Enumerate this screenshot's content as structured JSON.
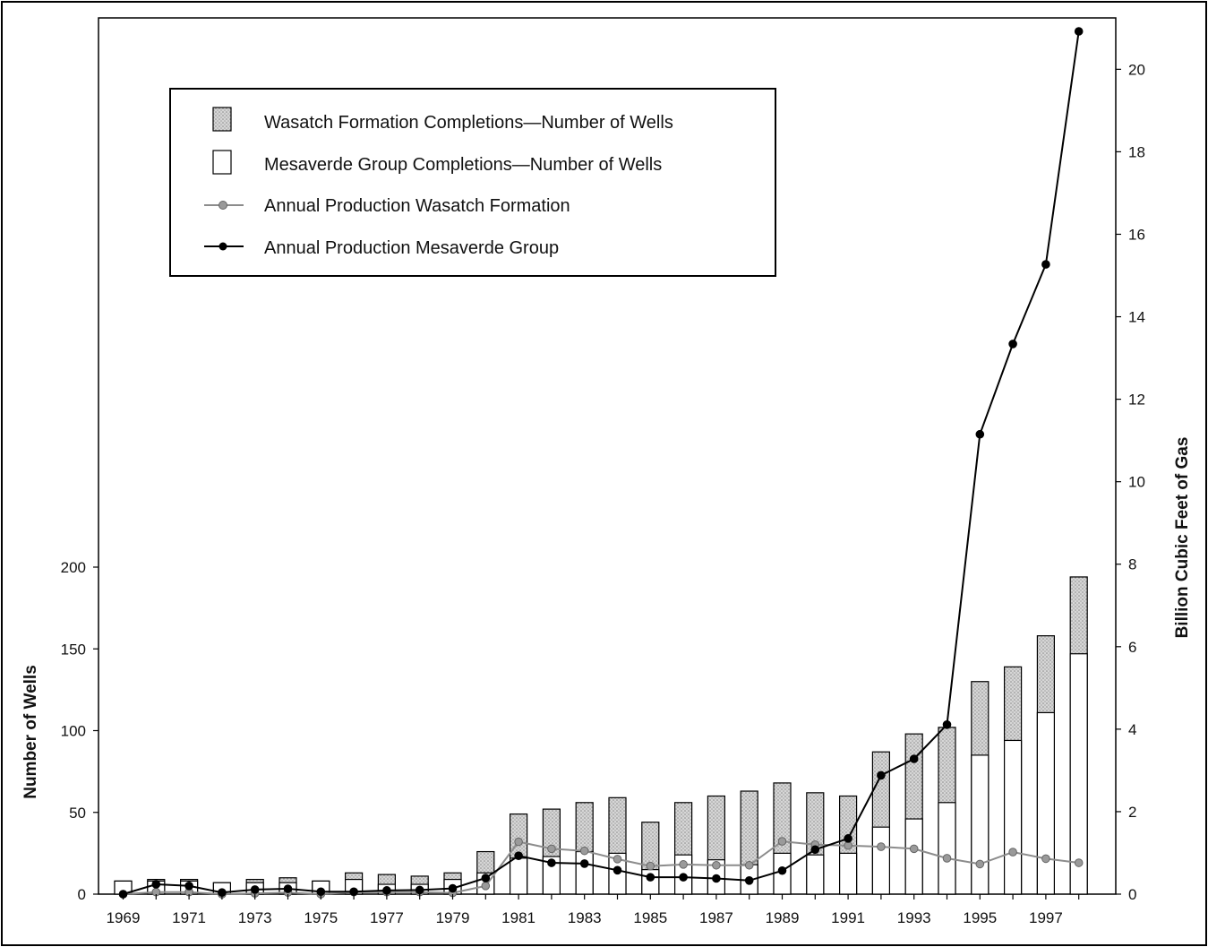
{
  "chart_data": {
    "type": "bar",
    "x": [
      1969,
      1970,
      1971,
      1972,
      1973,
      1974,
      1975,
      1976,
      1977,
      1978,
      1979,
      1980,
      1981,
      1982,
      1983,
      1984,
      1985,
      1986,
      1987,
      1988,
      1989,
      1990,
      1991,
      1992,
      1993,
      1994,
      1995,
      1996,
      1997,
      1998
    ],
    "x_tick_labels": [
      "1969",
      "1971",
      "1973",
      "1975",
      "1977",
      "1979",
      "1981",
      "1983",
      "1985",
      "1987",
      "1989",
      "1991",
      "1993",
      "1995",
      "1997"
    ],
    "stacked_bars": [
      {
        "name": "Mesaverde Group Completions—Number of Wells",
        "values": [
          8,
          8,
          8,
          7,
          7,
          7,
          8,
          9,
          6,
          6,
          9,
          13,
          22,
          23,
          26,
          25,
          15,
          24,
          21,
          18,
          25,
          24,
          25,
          41,
          46,
          56,
          85,
          94,
          111,
          147
        ]
      },
      {
        "name": "Wasatch Formation Completions—Number of Wells",
        "values": [
          0,
          1,
          1,
          0,
          2,
          3,
          0,
          4,
          6,
          5,
          4,
          13,
          27,
          29,
          30,
          34,
          29,
          32,
          39,
          45,
          43,
          38,
          35,
          46,
          52,
          46,
          45,
          45,
          47,
          47
        ]
      }
    ],
    "lines": [
      {
        "name": "Annual Production Wasatch Formation",
        "values": [
          0.0,
          0.05,
          0.05,
          0.0,
          0.02,
          0.04,
          0.0,
          0.05,
          0.05,
          0.05,
          0.03,
          0.2,
          1.27,
          1.1,
          1.05,
          0.85,
          0.68,
          0.72,
          0.7,
          0.7,
          1.28,
          1.2,
          1.18,
          1.15,
          1.1,
          0.87,
          0.73,
          1.02,
          0.86,
          0.76
        ]
      },
      {
        "name": "Annual Production Mesaverde Group",
        "values": [
          0.0,
          0.24,
          0.2,
          0.04,
          0.11,
          0.13,
          0.06,
          0.06,
          0.09,
          0.1,
          0.14,
          0.39,
          0.93,
          0.76,
          0.74,
          0.58,
          0.41,
          0.41,
          0.38,
          0.33,
          0.57,
          1.08,
          1.35,
          2.88,
          3.28,
          4.11,
          11.15,
          13.34,
          15.27,
          20.92
        ]
      }
    ],
    "y_left": {
      "label": "Number of Wells",
      "ticks": [
        "0",
        "50",
        "100",
        "150",
        "200"
      ],
      "ylim": [
        0,
        200
      ]
    },
    "y_right": {
      "label": "Billion Cubic Feet of Gas",
      "ticks": [
        "0",
        "2",
        "4",
        "6",
        "8",
        "10",
        "12",
        "14",
        "16",
        "18",
        "20"
      ],
      "ylim": [
        0,
        21.3
      ]
    },
    "legend_placement": "top-left",
    "grid": false,
    "colors": {
      "mesaverde_bar": "#ffffff",
      "wasatch_bar": "#c8c8c8",
      "wasatch_line": "#8c8c8c",
      "mesaverde_line": "#000000"
    }
  },
  "legend": {
    "wasatch_bars": "Wasatch Formation Completions—Number of Wells",
    "mesaverde_bars": "Mesaverde Group Completions—Number of Wells",
    "wasatch_line": "Annual Production Wasatch Formation",
    "mesaverde_line": "Annual Production Mesaverde Group"
  }
}
